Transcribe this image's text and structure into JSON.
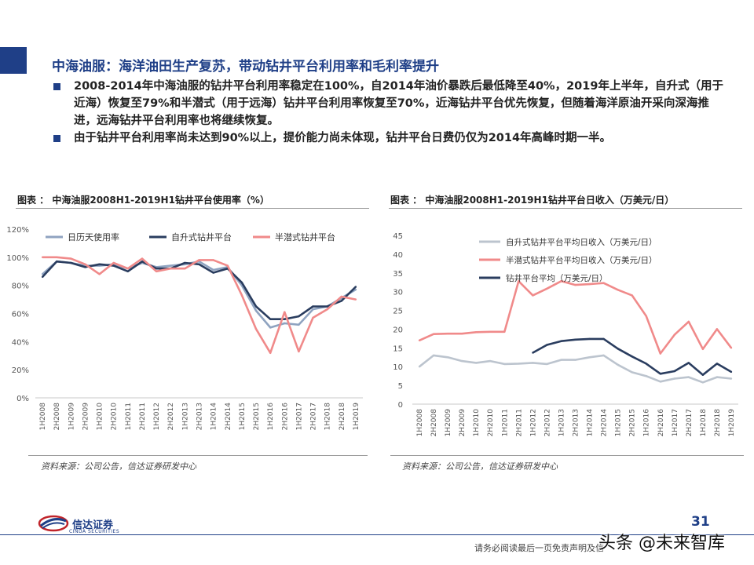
{
  "header": {
    "title": "中海油服：海洋油田生产复苏，带动钻井平台利用率和毛利率提升",
    "bullets": [
      "2008-2014年中海油服的钻井平台利用率稳定在100%，自2014年油价暴跌后最低降至40%，2019年上半年，自升式（用于近海）恢复至79%和半潜式（用于远海）钻井平台利用率恢复至70%，近海钻井平台优先恢复，但随着海洋原油开采向深海推进，远海钻井平台利用率也将继续恢复。",
      "由于钻井平台利用率尚未达到90%以上，提价能力尚未体现，钻井平台日费仍仅为2014年高峰时期一半。"
    ]
  },
  "left_chart": {
    "caption": "图表 ： 中海油服2008H1-2019H1钻井平台使用率（%）",
    "source": "资料来源：公司公告，信达证券研发中心"
  },
  "right_chart": {
    "caption": "图表 ： 中海油服2008H1-2019H1钻井平台日收入（万美元/日）",
    "source": "资料来源：公司公告，信达证券研发中心"
  },
  "footer": {
    "logo_text": "信达证券",
    "logo_sub": "CINDA SECURITIES",
    "page_number": "31",
    "disclaimer": "请务必阅读最后一页免责声明及信",
    "watermark": "头条 @未来智库"
  },
  "colors": {
    "brand": "#1f3f87",
    "series_gray": "#8fa3c0",
    "series_navy": "#2a3d5f",
    "series_pink": "#f08a8a",
    "series_lightgray": "#bcc4ce"
  },
  "chart_data": [
    {
      "type": "line",
      "categories": [
        "1H2008",
        "2H2008",
        "1H2009",
        "2H2009",
        "1H2010",
        "2H2010",
        "1H2011",
        "2H2011",
        "1H2012",
        "2H2012",
        "1H2013",
        "2H2013",
        "1H2014",
        "2H2014",
        "1H2015",
        "2H2015",
        "1H2016",
        "2H2016",
        "1H2017",
        "2H2017",
        "1H2018",
        "2H2018",
        "1H2019"
      ],
      "series": [
        {
          "name": "日历天使用率",
          "values": [
            88,
            97,
            96,
            94,
            94,
            95,
            92,
            96,
            93,
            94,
            95,
            97,
            91,
            93,
            80,
            62,
            50,
            53,
            52,
            63,
            65,
            71,
            77
          ]
        },
        {
          "name": "自升式钻井平台",
          "values": [
            86,
            97,
            96,
            93,
            95,
            94,
            90,
            97,
            92,
            92,
            96,
            95,
            89,
            92,
            82,
            65,
            56,
            56,
            58,
            65,
            65,
            69,
            79
          ]
        },
        {
          "name": "半潜式钻井平台",
          "values": [
            100,
            100,
            99,
            95,
            88,
            96,
            92,
            99,
            90,
            92,
            92,
            98,
            98,
            94,
            73,
            49,
            32,
            61,
            33,
            57,
            63,
            72,
            70
          ]
        }
      ],
      "ylim": [
        0,
        120
      ],
      "yticks": [
        "0%",
        "20%",
        "40%",
        "60%",
        "80%",
        "100%",
        "120%"
      ],
      "legend": "top"
    },
    {
      "type": "line",
      "categories": [
        "1H2008",
        "2H2008",
        "1H2009",
        "2H2009",
        "1H2010",
        "2H2010",
        "1H2011",
        "2H2011",
        "1H2012",
        "2H2012",
        "1H2013",
        "2H2013",
        "1H2014",
        "2H2014",
        "1H2015",
        "2H2015",
        "1H2016",
        "2H2016",
        "1H2017",
        "2H2017",
        "1H2018",
        "2H2018",
        "1H2019"
      ],
      "series": [
        {
          "name": "自升式钻井平台平均日收入（万美元/日）",
          "values": [
            10,
            13,
            12.5,
            11.5,
            11,
            11.5,
            10.7,
            10.8,
            11,
            10.7,
            11.8,
            11.8,
            12.5,
            13,
            10.5,
            8.5,
            7.5,
            6,
            6.8,
            7.2,
            5.8,
            7.2,
            6.8
          ]
        },
        {
          "name": "半潜式钻井平台平均日收入（万美元/日）",
          "values": [
            17,
            18.7,
            18.8,
            18.8,
            19.2,
            19.3,
            19.3,
            32.8,
            29,
            30.8,
            32.8,
            31.8,
            32,
            32.3,
            30.5,
            29,
            23.5,
            13.5,
            18.5,
            22,
            14.7,
            20,
            15
          ]
        },
        {
          "name": "钻井平台平均（万美元/日）",
          "values": [
            null,
            null,
            null,
            null,
            null,
            null,
            null,
            null,
            13.7,
            15.8,
            16.8,
            17.2,
            17.4,
            17.4,
            14.8,
            12.7,
            10.8,
            8.1,
            8.8,
            11,
            7.8,
            10.8,
            8.6
          ]
        }
      ],
      "ylim": [
        0,
        45
      ],
      "yticks": [
        "0",
        "5",
        "10",
        "15",
        "20",
        "25",
        "30",
        "35",
        "40",
        "45"
      ],
      "legend": "top-left"
    }
  ]
}
